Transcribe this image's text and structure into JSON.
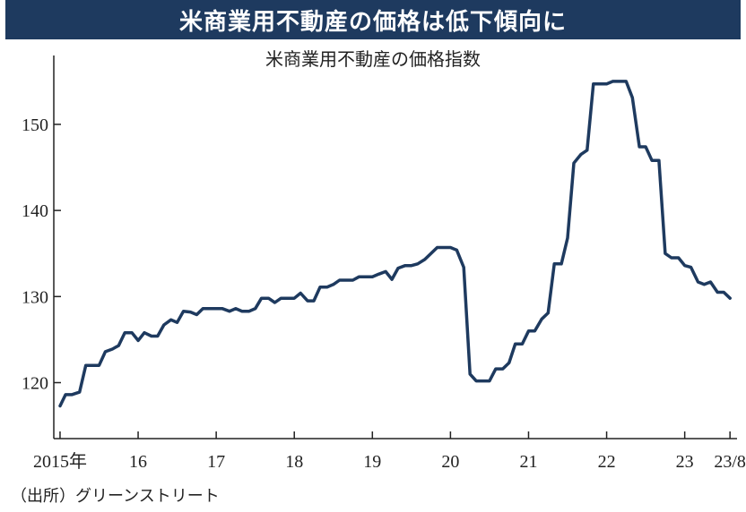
{
  "headline": "米商業用不動産の価格は低下傾向に",
  "source": "（出所）グリーンストリート",
  "colors": {
    "headline_bg": "#1e3a5f",
    "line": "#1e3a5f"
  },
  "chart_data": {
    "type": "line",
    "title": "米商業用不動産の価格指数",
    "xlabel": "",
    "ylabel": "",
    "ylim": [
      113.5,
      158
    ],
    "xlim": [
      2014.92,
      2023.67
    ],
    "grid": false,
    "y_ticks": [
      120,
      130,
      140,
      150
    ],
    "y_tick_labels": [
      "120",
      "130",
      "140",
      "150"
    ],
    "x_ticks": [
      2015,
      2016,
      2017,
      2018,
      2019,
      2020,
      2021,
      2022,
      2023,
      2023.58
    ],
    "x_tick_labels": [
      "2015年",
      "16",
      "17",
      "18",
      "19",
      "20",
      "21",
      "22",
      "23",
      "23/8"
    ],
    "series": [
      {
        "x": [
          2015.0,
          2015.07,
          2015.15,
          2015.25,
          2015.33,
          2015.42,
          2015.5,
          2015.58,
          2015.67,
          2015.75,
          2015.83,
          2015.92,
          2016.0,
          2016.08,
          2016.17,
          2016.25,
          2016.33,
          2016.42,
          2016.5,
          2016.58,
          2016.67,
          2016.75,
          2016.83,
          2016.92,
          2017.0,
          2017.08,
          2017.17,
          2017.25,
          2017.33,
          2017.42,
          2017.5,
          2017.58,
          2017.67,
          2017.75,
          2017.83,
          2017.92,
          2018.0,
          2018.08,
          2018.17,
          2018.25,
          2018.33,
          2018.42,
          2018.5,
          2018.58,
          2018.67,
          2018.75,
          2018.83,
          2018.92,
          2019.0,
          2019.08,
          2019.17,
          2019.25,
          2019.33,
          2019.42,
          2019.5,
          2019.58,
          2019.67,
          2019.75,
          2019.83,
          2019.92,
          2020.0,
          2020.08,
          2020.17,
          2020.25,
          2020.33,
          2020.42,
          2020.5,
          2020.58,
          2020.67,
          2020.75,
          2020.83,
          2020.92,
          2021.0,
          2021.08,
          2021.17,
          2021.25,
          2021.33,
          2021.42,
          2021.5,
          2021.58,
          2021.67,
          2021.75,
          2021.83,
          2021.92,
          2022.0,
          2022.08,
          2022.17,
          2022.25,
          2022.33,
          2022.42,
          2022.5,
          2022.58,
          2022.67,
          2022.75,
          2022.83,
          2022.92,
          2023.0,
          2023.08,
          2023.17,
          2023.25,
          2023.33,
          2023.42,
          2023.5,
          2023.58
        ],
        "y": [
          117.3,
          118.6,
          118.6,
          118.9,
          122.0,
          122.0,
          122.0,
          123.6,
          123.9,
          124.3,
          125.8,
          125.8,
          124.9,
          125.8,
          125.4,
          125.4,
          126.7,
          127.3,
          127.0,
          128.3,
          128.2,
          127.9,
          128.6,
          128.6,
          128.6,
          128.6,
          128.3,
          128.6,
          128.3,
          128.3,
          128.6,
          129.8,
          129.8,
          129.3,
          129.8,
          129.8,
          129.8,
          130.4,
          129.5,
          129.5,
          131.1,
          131.1,
          131.4,
          131.9,
          131.9,
          131.9,
          132.3,
          132.3,
          132.3,
          132.6,
          132.9,
          132.0,
          133.3,
          133.6,
          133.6,
          133.8,
          134.3,
          135.0,
          135.7,
          135.7,
          135.7,
          135.4,
          133.4,
          121.0,
          120.2,
          120.2,
          120.2,
          121.6,
          121.6,
          122.3,
          124.5,
          124.5,
          126.0,
          126.0,
          127.4,
          128.1,
          133.8,
          133.8,
          136.8,
          145.5,
          146.5,
          147.0,
          154.7,
          154.7,
          154.7,
          155.0,
          155.0,
          155.0,
          153.1,
          147.4,
          147.4,
          145.8,
          145.8,
          135.0,
          134.5,
          134.5,
          133.6,
          133.4,
          131.7,
          131.4,
          131.7,
          130.5,
          130.5,
          129.8
        ]
      }
    ]
  }
}
